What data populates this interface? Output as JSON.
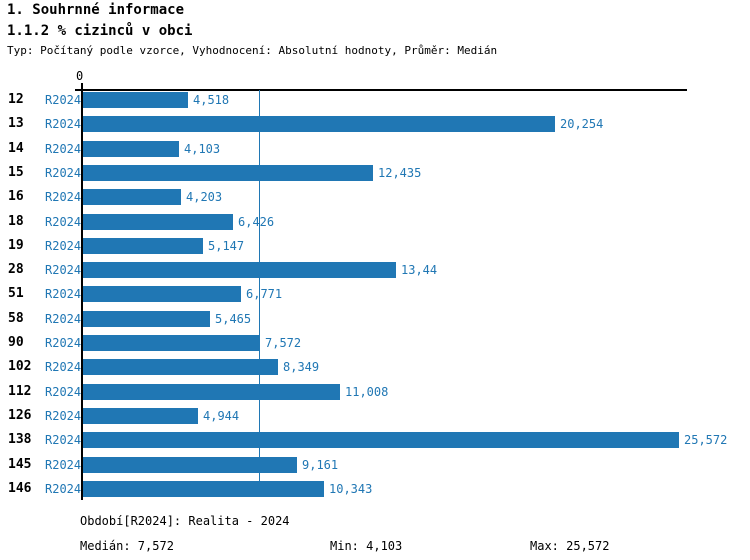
{
  "header": {
    "title_line1": "1. Souhrnné informace",
    "title_line2": "1.1.2 % cizinců v obci",
    "meta": "Typ: Počítaný podle vzorce, Vyhodnocení: Absolutní hodnoty, Průměr: Medián"
  },
  "chart_data": {
    "type": "bar",
    "orientation": "horizontal",
    "title": "1.1.2 % cizinců v obci",
    "axis_origin_label": "0",
    "period_label": "R2024",
    "categories": [
      "12",
      "13",
      "14",
      "15",
      "16",
      "18",
      "19",
      "28",
      "51",
      "58",
      "90",
      "102",
      "112",
      "126",
      "138",
      "145",
      "146"
    ],
    "values": [
      4.518,
      20.254,
      4.103,
      12.435,
      4.203,
      6.426,
      5.147,
      13.44,
      6.771,
      5.465,
      7.572,
      8.349,
      11.008,
      4.944,
      25.572,
      9.161,
      10.343
    ],
    "value_labels": [
      "4,518",
      "20,254",
      "4,103",
      "12,435",
      "4,203",
      "6,426",
      "5,147",
      "13,44",
      "6,771",
      "5,465",
      "7,572",
      "8,349",
      "11,008",
      "4,944",
      "25,572",
      "9,161",
      "10,343"
    ],
    "xlim": [
      0,
      25.9
    ],
    "median_line_value": 7.572,
    "grid": false,
    "legend": "none",
    "bar_color": "#2077b4",
    "label_color": "#2077b4"
  },
  "footer": {
    "period_line": "Období[R2024]: Realita - 2024",
    "median_label": "Medián: 7,572",
    "min_label": "Min: 4,103",
    "max_label": "Max: 25,572"
  },
  "colors": {
    "accent_blue": "#2077b4",
    "axis_black": "#000000",
    "background": "#ffffff"
  }
}
